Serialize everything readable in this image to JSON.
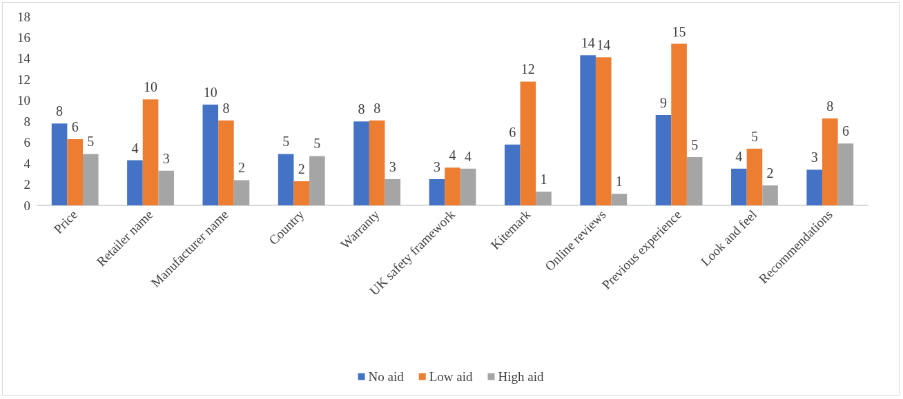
{
  "chart_data": {
    "type": "bar",
    "categories": [
      "Price",
      "Retailer name",
      "Manufacturer name",
      "Country",
      "Warranty",
      "UK safety framework",
      "Kitemark",
      "Online reviews",
      "Previous experience",
      "Look and feel",
      "Recommendations"
    ],
    "series": [
      {
        "name": "No aid",
        "color": "#4472c4",
        "values": [
          7.8,
          4.3,
          9.6,
          4.9,
          8.0,
          2.5,
          5.8,
          14.3,
          8.6,
          3.5,
          3.4
        ],
        "value_labels": [
          "8",
          "4",
          "10",
          "5",
          "8",
          "3",
          "6",
          "14",
          "9",
          "4",
          "3"
        ]
      },
      {
        "name": "Low aid",
        "color": "#ed7d31",
        "values": [
          6.3,
          10.1,
          8.1,
          2.3,
          8.1,
          3.6,
          11.8,
          14.1,
          15.4,
          5.4,
          8.3
        ],
        "value_labels": [
          "6",
          "10",
          "8",
          "2",
          "8",
          "4",
          "12",
          "14",
          "15",
          "5",
          "8"
        ]
      },
      {
        "name": "High aid",
        "color": "#a5a5a5",
        "values": [
          4.9,
          3.3,
          2.4,
          4.7,
          2.5,
          3.5,
          1.3,
          1.1,
          4.6,
          1.9,
          5.9
        ],
        "value_labels": [
          "5",
          "3",
          "2",
          "5",
          "3",
          "4",
          "1",
          "1",
          "5",
          "2",
          "6"
        ]
      }
    ],
    "ylim": [
      0,
      18
    ],
    "yticks": [
      0,
      2,
      4,
      6,
      8,
      10,
      12,
      14,
      16,
      18
    ],
    "grid": false,
    "legend": "bottom"
  }
}
